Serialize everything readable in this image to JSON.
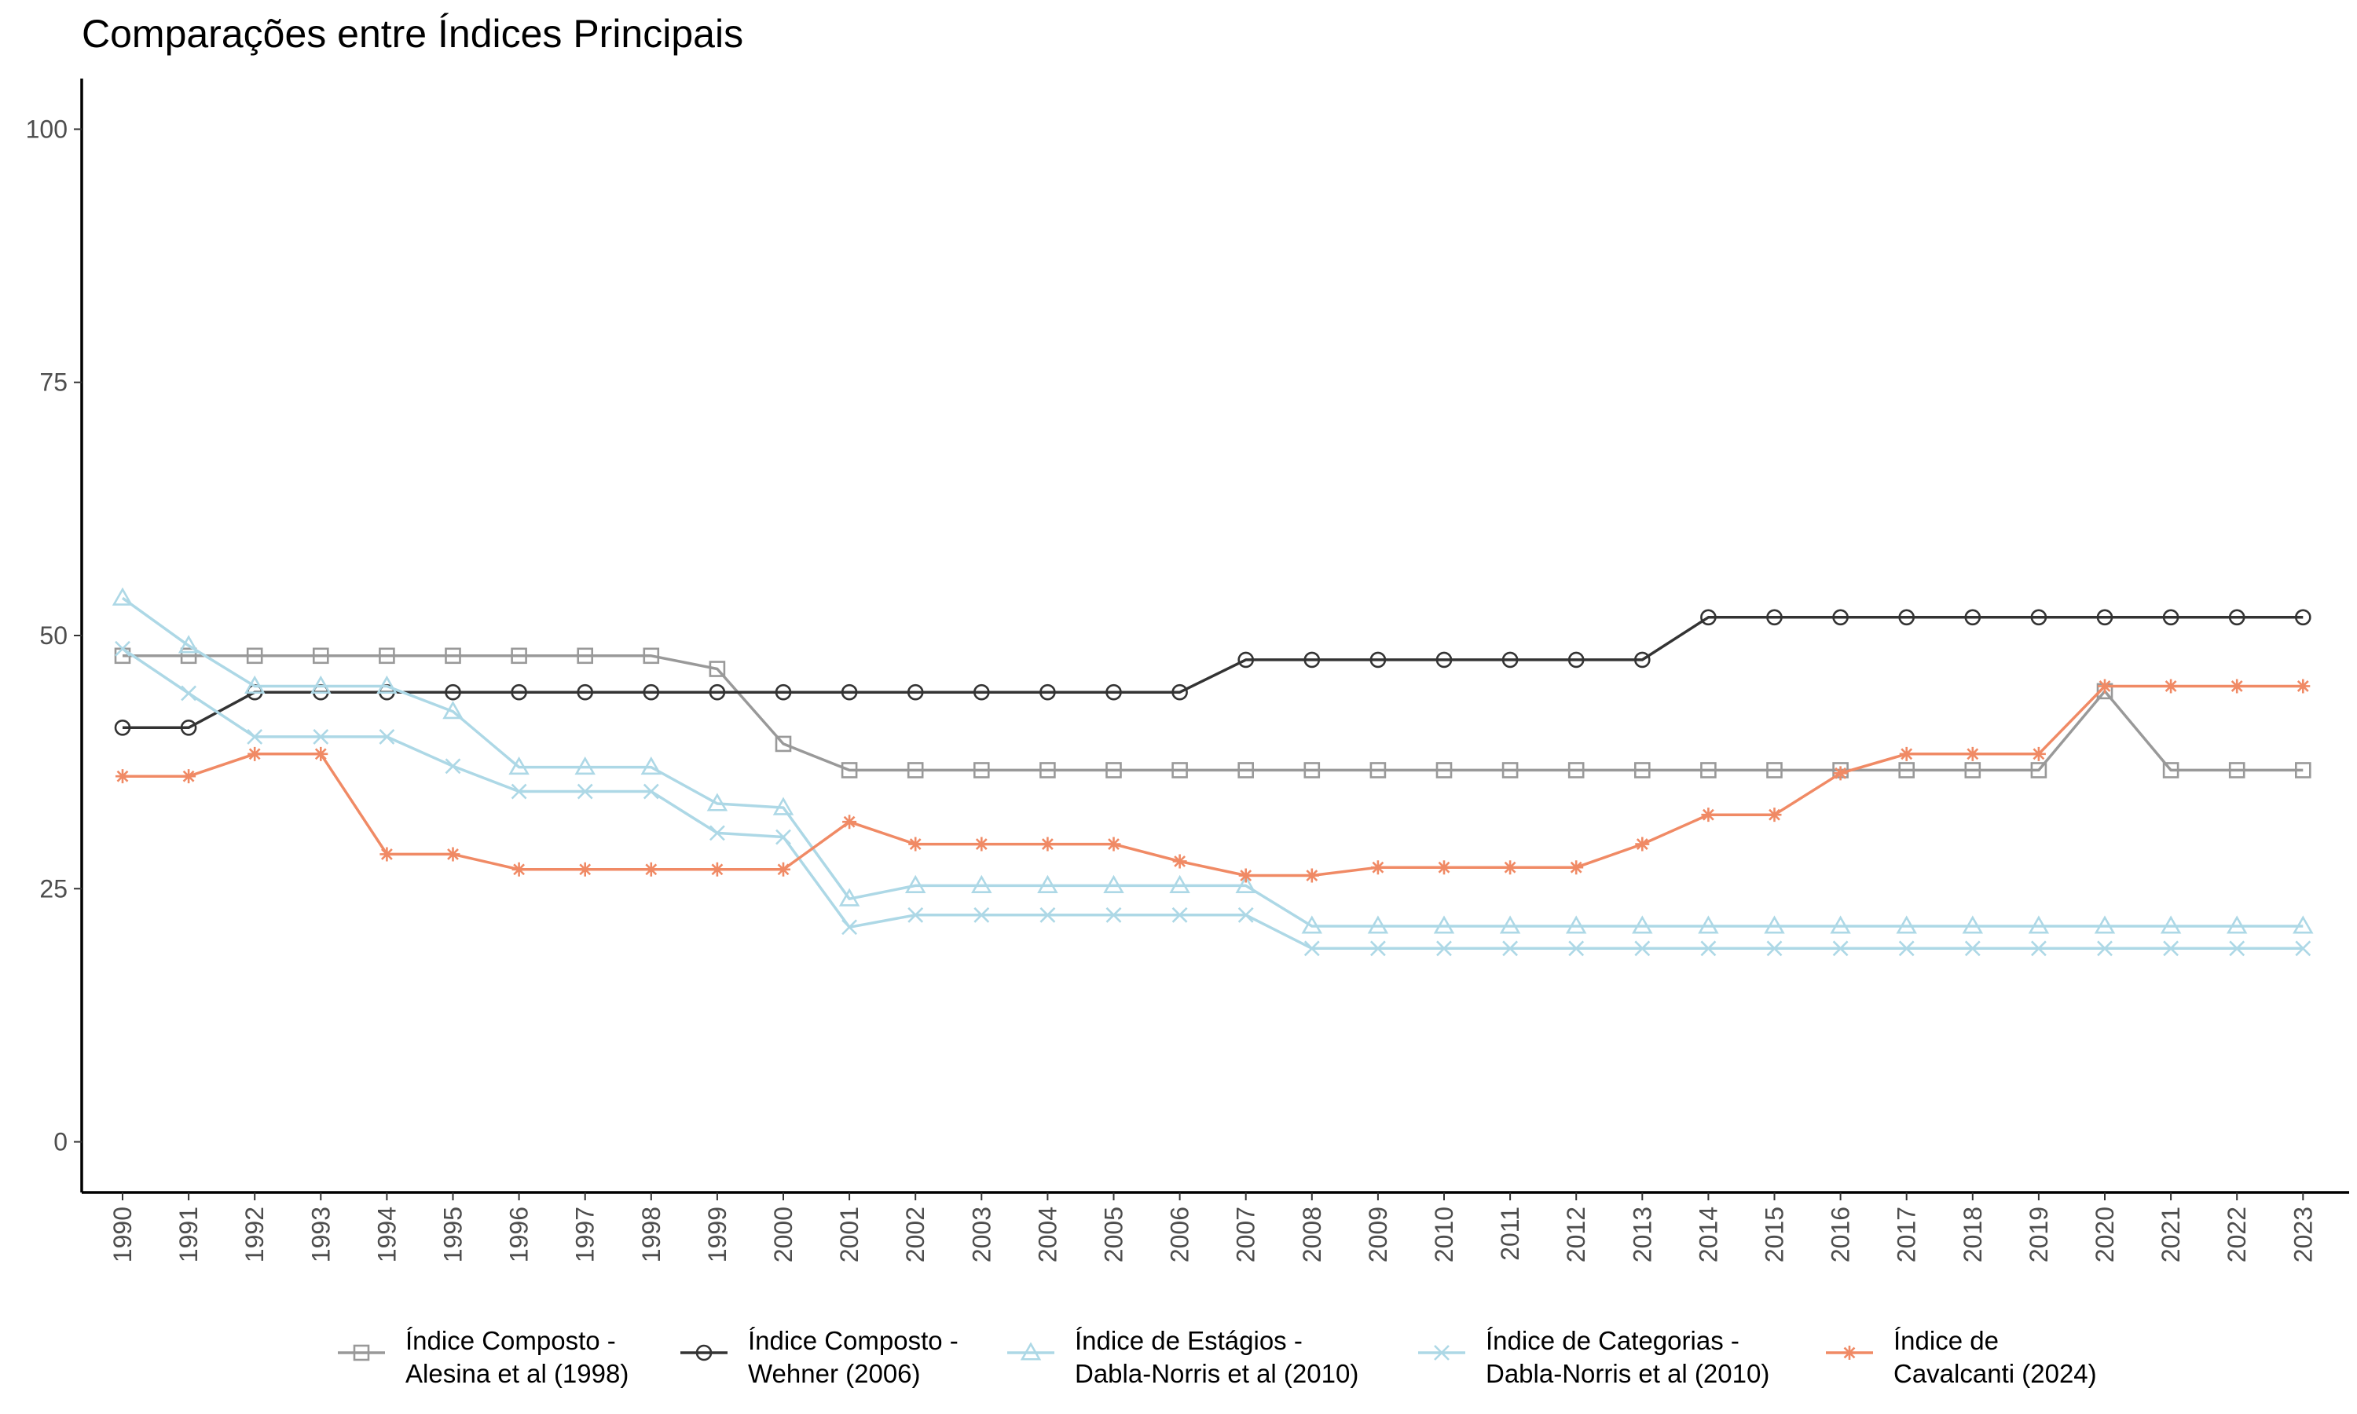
{
  "chart_data": {
    "type": "line",
    "title": "Comparações entre Índices Principais",
    "xlabel": "",
    "ylabel": "",
    "ylim": [
      -5,
      105
    ],
    "yticks": [
      0,
      25,
      50,
      75,
      100
    ],
    "ytick_labels": [
      "0",
      "25",
      "50",
      "75",
      "100"
    ],
    "grid": false,
    "legend_position": "bottom",
    "x": [
      "1990",
      "1991",
      "1992",
      "1993",
      "1994",
      "1995",
      "1996",
      "1997",
      "1998",
      "1999",
      "2000",
      "2001",
      "2002",
      "2003",
      "2004",
      "2005",
      "2006",
      "2007",
      "2008",
      "2009",
      "2010",
      "2011",
      "2012",
      "2013",
      "2014",
      "2015",
      "2016",
      "2017",
      "2018",
      "2019",
      "2020",
      "2021",
      "2022",
      "2023"
    ],
    "series": [
      {
        "name": "Índice Composto - Alesina et al (1998)",
        "legend_lines": [
          "Índice Composto -",
          "Alesina et al (1998)"
        ],
        "color": "#999999",
        "marker": "square",
        "values": [
          48.0,
          48.0,
          48.0,
          48.0,
          48.0,
          48.0,
          48.0,
          48.0,
          48.0,
          46.7,
          39.3,
          36.7,
          36.7,
          36.7,
          36.7,
          36.7,
          36.7,
          36.7,
          36.7,
          36.7,
          36.7,
          36.7,
          36.7,
          36.7,
          36.7,
          36.7,
          36.7,
          36.7,
          36.7,
          36.7,
          44.5,
          36.7,
          36.7,
          36.7
        ]
      },
      {
        "name": "Índice Composto - Wehner (2006)",
        "legend_lines": [
          "Índice Composto -",
          "Wehner (2006)"
        ],
        "color": "#333333",
        "marker": "circle",
        "values": [
          40.9,
          40.9,
          44.4,
          44.4,
          44.4,
          44.4,
          44.4,
          44.4,
          44.4,
          44.4,
          44.4,
          44.4,
          44.4,
          44.4,
          44.4,
          44.4,
          44.4,
          47.6,
          47.6,
          47.6,
          47.6,
          47.6,
          47.6,
          47.6,
          51.8,
          51.8,
          51.8,
          51.8,
          51.8,
          51.8,
          51.8,
          51.8,
          51.8,
          51.8
        ]
      },
      {
        "name": "Índice de Estágios - Dabla-Norris et al (2010)",
        "legend_lines": [
          "Índice de Estágios -",
          "Dabla-Norris et al (2010)"
        ],
        "color": "#add8e6",
        "marker": "triangle",
        "values": [
          53.7,
          49.0,
          45.0,
          45.0,
          45.0,
          42.5,
          37.0,
          37.0,
          37.0,
          33.4,
          33.0,
          24.0,
          25.3,
          25.3,
          25.3,
          25.3,
          25.3,
          25.3,
          21.3,
          21.3,
          21.3,
          21.3,
          21.3,
          21.3,
          21.3,
          21.3,
          21.3,
          21.3,
          21.3,
          21.3,
          21.3,
          21.3,
          21.3,
          21.3
        ]
      },
      {
        "name": "Índice de Categorias - Dabla-Norris et al (2010)",
        "legend_lines": [
          "Índice de Categorias -",
          "Dabla-Norris et al (2010)"
        ],
        "color": "#add8e6",
        "marker": "cross",
        "values": [
          48.7,
          44.3,
          40.0,
          40.0,
          40.0,
          37.1,
          34.6,
          34.6,
          34.6,
          30.5,
          30.1,
          21.2,
          22.4,
          22.4,
          22.4,
          22.4,
          22.4,
          22.4,
          19.1,
          19.1,
          19.1,
          19.1,
          19.1,
          19.1,
          19.1,
          19.1,
          19.1,
          19.1,
          19.1,
          19.1,
          19.1,
          19.1,
          19.1,
          19.1
        ]
      },
      {
        "name": "Índice de Cavalcanti (2024)",
        "legend_lines": [
          "Índice de",
          "Cavalcanti (2024)"
        ],
        "color": "#f08a65",
        "marker": "asterisk",
        "values": [
          36.1,
          36.1,
          38.3,
          38.3,
          28.4,
          28.4,
          26.9,
          26.9,
          26.9,
          26.9,
          26.9,
          31.6,
          29.4,
          29.4,
          29.4,
          29.4,
          27.7,
          26.3,
          26.3,
          27.1,
          27.1,
          27.1,
          27.1,
          29.4,
          32.3,
          32.3,
          36.4,
          38.3,
          38.3,
          38.3,
          45.0,
          45.0,
          45.0,
          45.0
        ]
      }
    ]
  }
}
